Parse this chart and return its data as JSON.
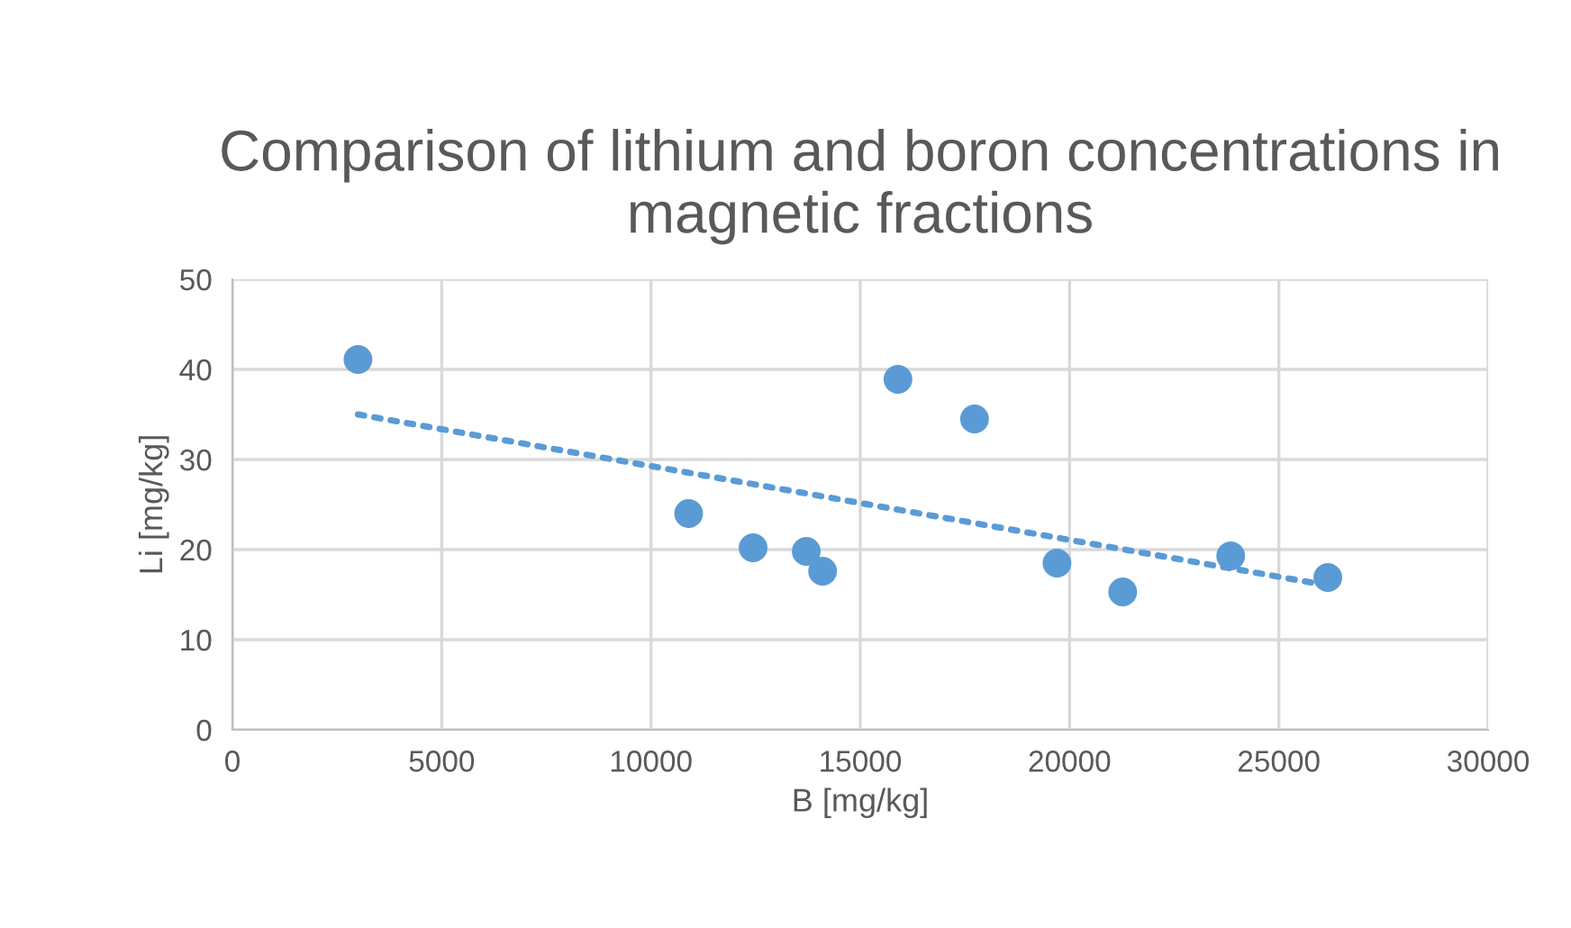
{
  "chart_data": {
    "type": "scatter",
    "title": "Comparison of lithium and boron concentrations in magnetic fractions",
    "xlabel": "B [mg/kg]",
    "ylabel": "Li [mg/kg]",
    "series": [
      {
        "color": "#5b9bd5",
        "x": [
          3000,
          10900,
          12440,
          13710,
          14100,
          15900,
          17730,
          19700,
          21270,
          23850,
          26170
        ],
        "values": [
          41.1,
          24.0,
          20.2,
          19.8,
          17.6,
          38.9,
          34.5,
          18.5,
          15.3,
          19.3,
          16.9
        ],
        "marker": "circle"
      },
      {
        "type": "line",
        "color": "#5b9bd5",
        "x": [
          3000,
          26200
        ],
        "values": [
          35.0,
          16.0
        ],
        "line_style": "dotted",
        "marker": "none"
      }
    ],
    "xlim": [
      0,
      30000
    ],
    "xticks": [
      0,
      5000,
      10000,
      15000,
      20000,
      25000,
      30000
    ],
    "ylim": [
      0,
      50
    ],
    "yticks": [
      0,
      10,
      20,
      30,
      40,
      50
    ],
    "grid": true
  }
}
